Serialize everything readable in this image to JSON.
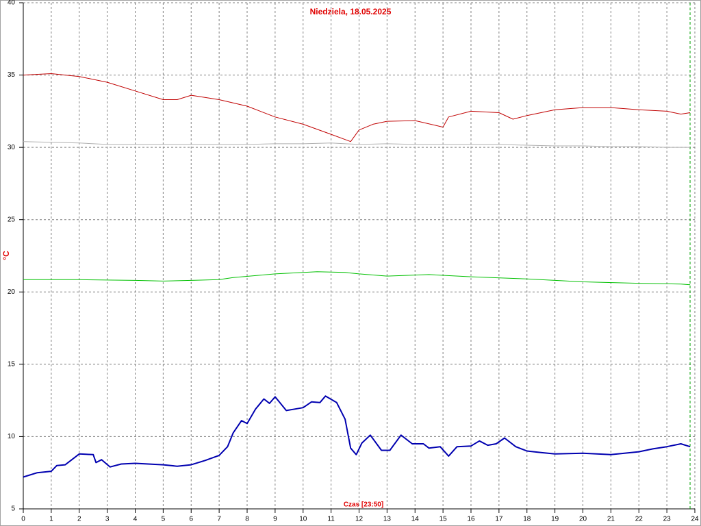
{
  "chart_data": {
    "type": "line",
    "title": "Niedziela, 18.05.2025",
    "y_label": "°C",
    "x_label": "Czas [23:50]",
    "xlim": [
      0,
      24
    ],
    "xticks": [
      0,
      1,
      2,
      3,
      4,
      5,
      6,
      7,
      8,
      9,
      10,
      11,
      12,
      13,
      14,
      15,
      16,
      17,
      18,
      19,
      20,
      21,
      22,
      23,
      24
    ],
    "ylim": [
      5,
      40
    ],
    "yticks": [
      5,
      10,
      15,
      20,
      25,
      30,
      35,
      40
    ],
    "grid": true,
    "current_time": 23.83,
    "current_time_color": "#00a000",
    "series": [
      {
        "color": "#c00000",
        "width": 1,
        "x": [
          0,
          1,
          2,
          3,
          4,
          5,
          5.5,
          6,
          7,
          8,
          9,
          10,
          11,
          11.7,
          12,
          12.5,
          13,
          14,
          15,
          15.2,
          16,
          17,
          17.5,
          18,
          19,
          20,
          21,
          22,
          23,
          23.5,
          23.83
        ],
        "values": [
          35.0,
          35.1,
          34.9,
          34.5,
          33.9,
          33.3,
          33.3,
          33.6,
          33.3,
          32.85,
          32.1,
          31.6,
          30.9,
          30.4,
          31.2,
          31.6,
          31.8,
          31.85,
          31.4,
          32.1,
          32.5,
          32.4,
          31.95,
          32.2,
          32.6,
          32.75,
          32.75,
          32.6,
          32.5,
          32.3,
          32.4
        ]
      },
      {
        "color": "#b0b0b0",
        "width": 1,
        "x": [
          0,
          1,
          2,
          3,
          4,
          5,
          6,
          7,
          8,
          9,
          10,
          11,
          12,
          13,
          14,
          15,
          16,
          17,
          18,
          19,
          20,
          21,
          22,
          23,
          23.83
        ],
        "values": [
          30.4,
          30.35,
          30.3,
          30.2,
          30.2,
          30.2,
          30.2,
          30.2,
          30.2,
          30.25,
          30.25,
          30.3,
          30.2,
          30.25,
          30.2,
          30.2,
          30.2,
          30.2,
          30.15,
          30.1,
          30.1,
          30.05,
          30.05,
          30.0,
          30.0
        ]
      },
      {
        "color": "#00c000",
        "width": 1,
        "x": [
          0,
          2,
          4,
          5,
          6,
          7,
          7.5,
          9,
          10.5,
          11.5,
          12,
          13,
          14.5,
          16,
          18,
          20,
          22,
          23.5,
          23.83
        ],
        "values": [
          20.85,
          20.85,
          20.8,
          20.75,
          20.8,
          20.85,
          21.0,
          21.25,
          21.4,
          21.35,
          21.25,
          21.1,
          21.2,
          21.05,
          20.9,
          20.7,
          20.6,
          20.55,
          20.5
        ]
      },
      {
        "color": "#0000b0",
        "width": 2,
        "x": [
          0,
          0.5,
          1,
          1.2,
          1.5,
          2,
          2.5,
          2.6,
          2.8,
          3.1,
          3.5,
          4,
          5,
          5.5,
          6,
          6.5,
          7,
          7.3,
          7.5,
          7.8,
          8,
          8.3,
          8.6,
          8.8,
          9,
          9.4,
          9.7,
          10,
          10.3,
          10.6,
          10.8,
          11.2,
          11.5,
          11.7,
          11.9,
          12.1,
          12.4,
          12.8,
          13.1,
          13.5,
          13.9,
          14.3,
          14.5,
          14.9,
          15.2,
          15.5,
          16,
          16.3,
          16.6,
          16.9,
          17.2,
          17.6,
          18,
          18.5,
          19,
          20,
          21,
          22,
          22.5,
          23,
          23.5,
          23.83
        ],
        "values": [
          7.2,
          7.5,
          7.6,
          8.0,
          8.05,
          8.8,
          8.75,
          8.2,
          8.4,
          7.9,
          8.1,
          8.15,
          8.05,
          7.95,
          8.05,
          8.35,
          8.7,
          9.3,
          10.25,
          11.1,
          10.9,
          11.9,
          12.6,
          12.3,
          12.75,
          11.8,
          11.9,
          12.0,
          12.4,
          12.35,
          12.8,
          12.35,
          11.2,
          9.2,
          8.75,
          9.55,
          10.1,
          9.05,
          9.05,
          10.1,
          9.5,
          9.5,
          9.2,
          9.3,
          8.65,
          9.3,
          9.35,
          9.7,
          9.4,
          9.5,
          9.9,
          9.3,
          9.0,
          8.9,
          8.8,
          8.85,
          8.75,
          8.95,
          9.15,
          9.3,
          9.5,
          9.3
        ]
      }
    ]
  }
}
